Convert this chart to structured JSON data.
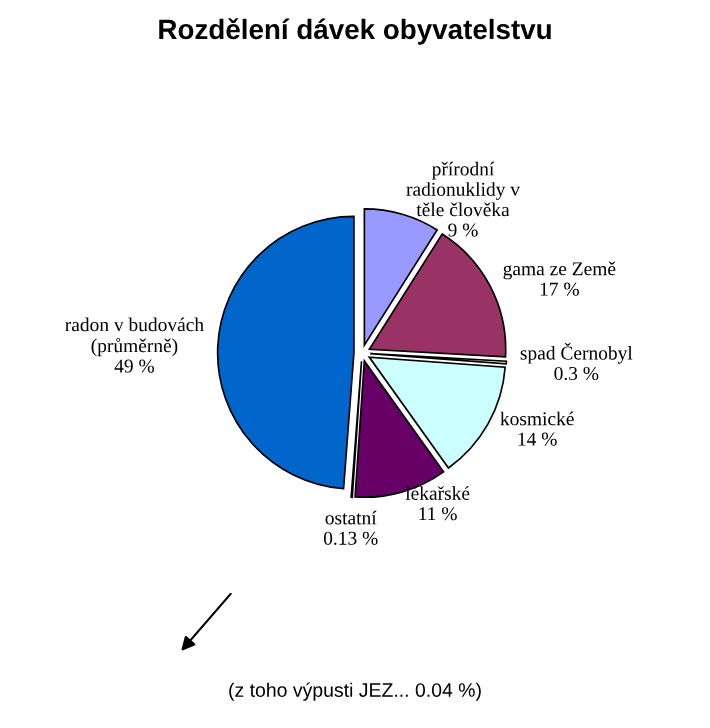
{
  "chart_data": {
    "type": "pie",
    "title": "Rozdělení dávek obyvatelstvu",
    "categories": [
      "přírodní\nradionuklidy v\ntěle člověka",
      "gama ze Země",
      "spad Černobyl",
      "kosmické",
      "lékařské",
      "ostatní",
      "radon v budovách\n(průměrně)"
    ],
    "values": [
      9,
      17,
      0.3,
      14,
      11,
      0.13,
      49
    ],
    "value_labels": [
      "9 %",
      "17 %",
      "0.3 %",
      "14 %",
      "11 %",
      "0.13 %",
      "49 %"
    ],
    "colors": [
      "#9999ff",
      "#993366",
      "#ffffcc",
      "#ccffff",
      "#660066",
      "#ffffff",
      "#0066cc"
    ],
    "annotations": [
      "(z toho výpusti JEZ... 0.04 %)"
    ]
  }
}
